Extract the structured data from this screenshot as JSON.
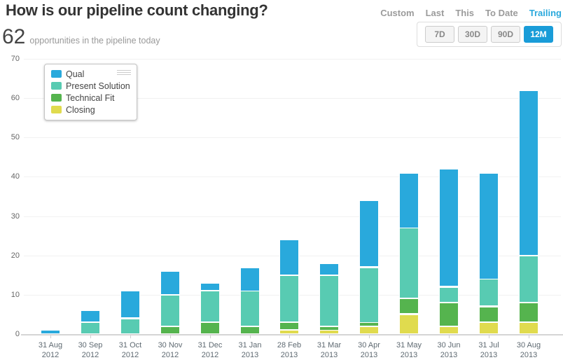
{
  "header": {
    "title": "How is our pipeline count changing?",
    "metric_value": "62",
    "metric_label": "opportunities in the pipeline today"
  },
  "range_nav": {
    "items": [
      {
        "label": "Custom",
        "active": false
      },
      {
        "label": "Last",
        "active": false
      },
      {
        "label": "This",
        "active": false
      },
      {
        "label": "To Date",
        "active": false
      },
      {
        "label": "Trailing",
        "active": true
      }
    ]
  },
  "duration_buttons": {
    "items": [
      {
        "label": "7D",
        "active": false
      },
      {
        "label": "30D",
        "active": false
      },
      {
        "label": "90D",
        "active": false
      },
      {
        "label": "12M",
        "active": true
      }
    ]
  },
  "colors": {
    "qual": "#29A9DC",
    "present_solution": "#58CBB2",
    "technical_fit": "#55B44E",
    "closing": "#E0DB4E",
    "active_button": "#199CD8",
    "active_link": "#29A8DC",
    "gridline": "#F1F1F1",
    "axis_line": "#D5D5D5"
  },
  "chart_data": {
    "type": "bar",
    "stacked": true,
    "title": "",
    "xlabel": "",
    "ylabel": "",
    "ylim": [
      0,
      70
    ],
    "yticks": [
      0,
      10,
      20,
      30,
      40,
      50,
      60,
      70
    ],
    "grid": true,
    "legend_position": "top-left",
    "legend_order_top_to_bottom": [
      "Qual",
      "Present Solution",
      "Technical Fit",
      "Closing"
    ],
    "stack_order_bottom_to_top": [
      "Closing",
      "Technical Fit",
      "Present Solution",
      "Qual"
    ],
    "categories": [
      "31 Aug 2012",
      "30 Sep 2012",
      "31 Oct 2012",
      "30 Nov 2012",
      "31 Dec 2012",
      "31 Jan 2013",
      "28 Feb 2013",
      "31 Mar 2013",
      "30 Apr 2013",
      "31 May 2013",
      "30 Jun 2013",
      "31 Jul 2013",
      "30 Aug 2013"
    ],
    "series": [
      {
        "name": "Qual",
        "color": "#29A9DC",
        "values": [
          1,
          3,
          7,
          6,
          2,
          6,
          9,
          3,
          17,
          14,
          30,
          27,
          42
        ]
      },
      {
        "name": "Present Solution",
        "color": "#58CBB2",
        "values": [
          0,
          3,
          4,
          8,
          8,
          9,
          12,
          13,
          14,
          18,
          4,
          7,
          12
        ]
      },
      {
        "name": "Technical Fit",
        "color": "#55B44E",
        "values": [
          0,
          0,
          0,
          2,
          3,
          2,
          2,
          1,
          1,
          4,
          6,
          4,
          5
        ]
      },
      {
        "name": "Closing",
        "color": "#E0DB4E",
        "values": [
          0,
          0,
          0,
          0,
          0,
          0,
          1,
          1,
          2,
          5,
          2,
          3,
          3
        ]
      }
    ],
    "totals": [
      1,
      6,
      11,
      16,
      13,
      17,
      24,
      18,
      34,
      41,
      42,
      41,
      62
    ]
  }
}
